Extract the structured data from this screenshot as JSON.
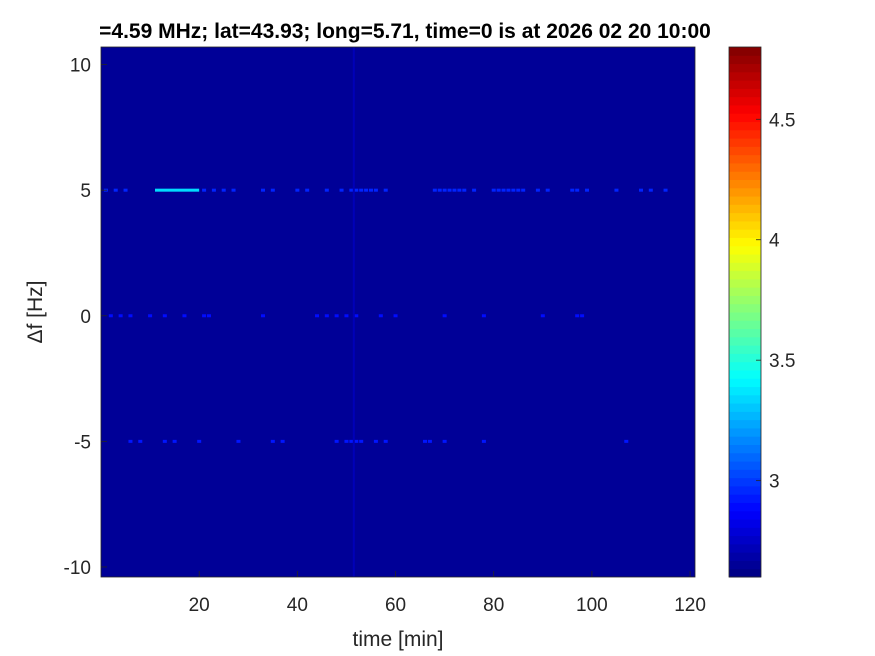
{
  "chart_data": {
    "type": "heatmap",
    "title": "=4.59 MHz;  lat=43.93; long=5.71, time=0 is at 2026 02 20 10:00",
    "xlabel": "time [min]",
    "ylabel": "Δf [Hz]",
    "xlim": [
      0,
      121
    ],
    "ylim": [
      -10.4,
      10.7
    ],
    "xticks": [
      20,
      40,
      60,
      80,
      100,
      120
    ],
    "yticks": [
      10,
      5,
      0,
      -5,
      -10
    ],
    "colormap": "jet",
    "clim": [
      2.6,
      4.8
    ],
    "colorbar_ticks": [
      3,
      3.5,
      4,
      4.5
    ],
    "background_value": 2.65,
    "features": [
      {
        "freq": 5,
        "t_start": 11,
        "t_end": 20,
        "value": 3.35
      },
      {
        "freq": 5,
        "points": [
          1,
          3,
          5,
          21,
          23,
          25,
          27,
          33,
          35,
          40,
          42,
          46,
          49,
          51,
          52,
          53,
          54,
          55,
          56,
          58,
          68,
          69,
          70,
          71,
          72,
          73,
          74,
          76,
          80,
          81,
          82,
          83,
          84,
          85,
          86,
          89,
          91,
          96,
          97,
          99,
          105,
          110,
          112,
          115
        ],
        "value": 2.95
      },
      {
        "freq": 0,
        "points": [
          2,
          4,
          6,
          10,
          13,
          17,
          21,
          22,
          33,
          44,
          46,
          48,
          50,
          52,
          57,
          60,
          70,
          78,
          90,
          97,
          98
        ],
        "value": 2.9
      },
      {
        "freq": -5,
        "points": [
          6,
          8,
          13,
          15,
          20,
          28,
          35,
          37,
          48,
          50,
          51,
          52,
          53,
          56,
          58,
          66,
          67,
          70,
          78,
          107
        ],
        "value": 2.92
      },
      {
        "time": 51.5,
        "f_start": -10.4,
        "f_end": 10.7,
        "value": 2.72
      }
    ]
  }
}
